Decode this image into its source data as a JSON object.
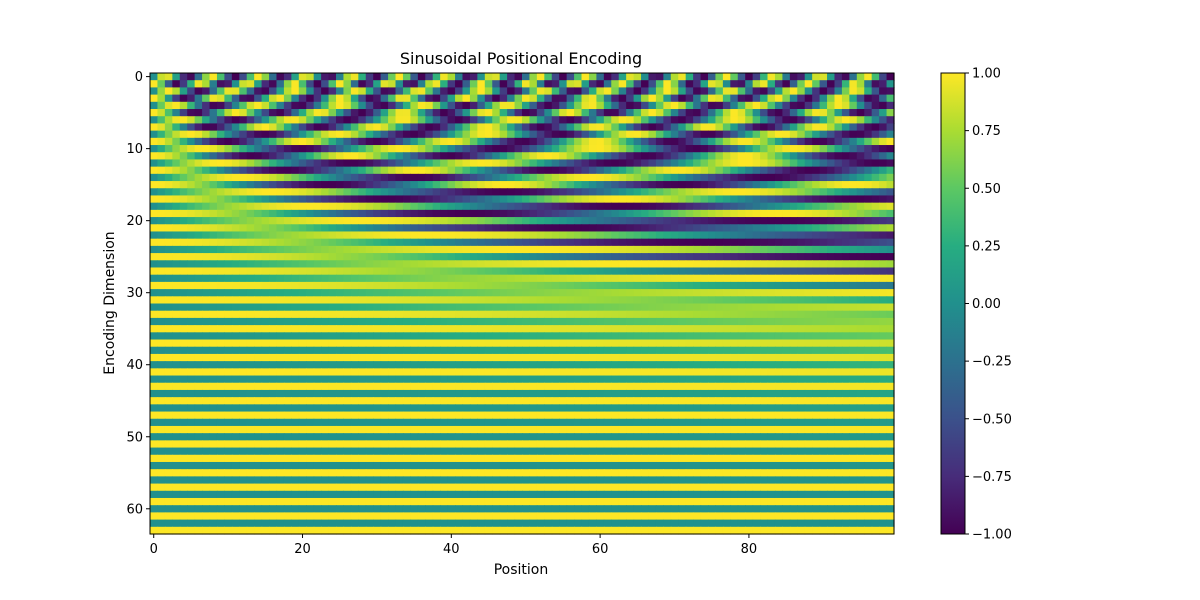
{
  "chart_data": {
    "type": "heatmap",
    "title": "Sinusoidal Positional Encoding",
    "xlabel": "Position",
    "ylabel": "Encoding Dimension",
    "positions": 100,
    "dimensions": 64,
    "xlim": [
      -0.5,
      99.5
    ],
    "ylim": [
      63.5,
      -0.5
    ],
    "xticks": [
      0,
      20,
      40,
      60,
      80
    ],
    "yticks": [
      0,
      10,
      20,
      30,
      40,
      50,
      60
    ],
    "value_formula": "even dimension i: sin(pos / 10000^(i/64)); odd dimension i: cos(pos / 10000^((i-1)/64))",
    "colormap": "viridis",
    "colorbar": {
      "range": [
        -1.0,
        1.0
      ],
      "ticks": [
        1.0,
        0.75,
        0.5,
        0.25,
        0.0,
        -0.25,
        -0.5,
        -0.75,
        -1.0
      ],
      "tick_labels": [
        "1.00",
        "0.75",
        "0.50",
        "0.25",
        "0.00",
        "−0.25",
        "−0.50",
        "−0.75",
        "−1.00"
      ]
    },
    "grid": false,
    "legend": "colorbar at right"
  }
}
